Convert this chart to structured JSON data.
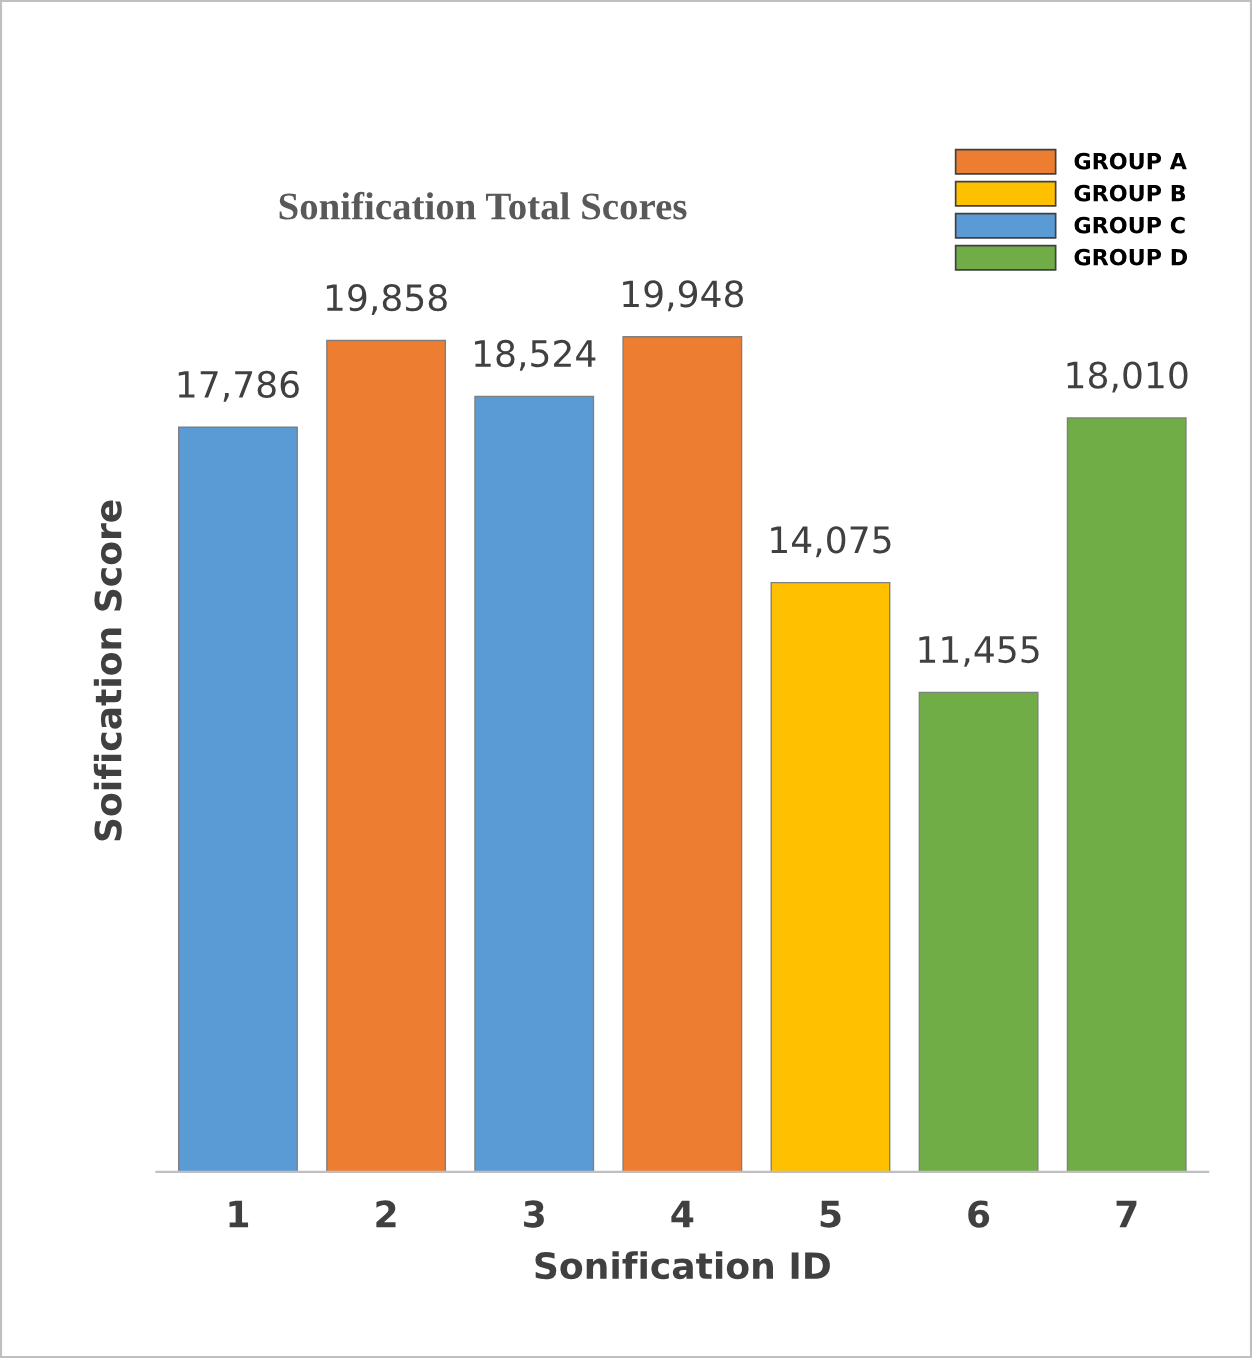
{
  "chart_data": {
    "type": "bar",
    "title": "Sonification Total Scores",
    "xlabel": "Sonification ID",
    "ylabel": "Soification Score",
    "categories": [
      "1",
      "2",
      "3",
      "4",
      "5",
      "6",
      "7"
    ],
    "tick_labels": "x",
    "legend": "top right",
    "grid": false,
    "series": [
      {
        "name": "GROUP A",
        "color": "#ed7d31",
        "values": [
          null,
          19858,
          null,
          19948,
          null,
          null,
          null
        ],
        "value_labels": [
          null,
          "19,858",
          null,
          "19,948",
          null,
          null,
          null
        ]
      },
      {
        "name": "GROUP B",
        "color": "#ffc000",
        "values": [
          null,
          null,
          null,
          null,
          14075,
          null,
          null
        ],
        "value_labels": [
          null,
          null,
          null,
          null,
          "14,075",
          null,
          null
        ]
      },
      {
        "name": "GROUP C",
        "color": "#5b9bd5",
        "values": [
          17786,
          null,
          18524,
          null,
          null,
          null,
          null
        ],
        "value_labels": [
          "17,786",
          null,
          "18,524",
          null,
          null,
          null,
          null
        ]
      },
      {
        "name": "GROUP D",
        "color": "#70ad47",
        "values": [
          null,
          null,
          null,
          null,
          null,
          11455,
          18010
        ],
        "value_labels": [
          null,
          null,
          null,
          null,
          null,
          "11,455",
          "18,010"
        ]
      }
    ]
  }
}
